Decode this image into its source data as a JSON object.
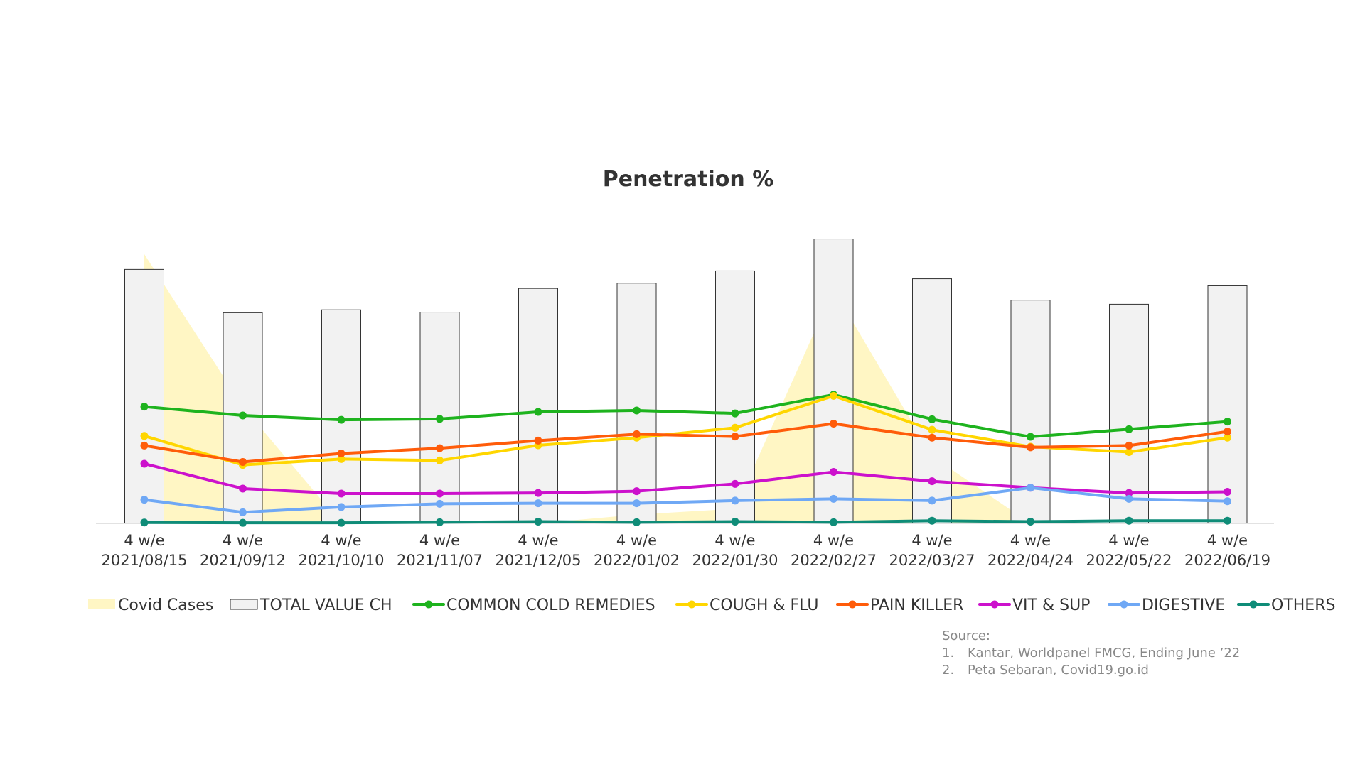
{
  "chart_data": {
    "type": "bar",
    "title": "Penetration %",
    "categories": [
      [
        "4 w/e",
        "2021/08/15"
      ],
      [
        "4 w/e",
        "2021/09/12"
      ],
      [
        "4 w/e",
        "2021/10/10"
      ],
      [
        "4 w/e",
        "2021/11/07"
      ],
      [
        "4 w/e",
        "2021/12/05"
      ],
      [
        "4 w/e",
        "2022/01/02"
      ],
      [
        "4 w/e",
        "2022/01/30"
      ],
      [
        "4 w/e",
        "2022/02/27"
      ],
      [
        "4 w/e",
        "2022/03/27"
      ],
      [
        "4 w/e",
        "2022/04/24"
      ],
      [
        "4 w/e",
        "2022/05/22"
      ],
      [
        "4 w/e",
        "2022/06/19"
      ]
    ],
    "area_series": {
      "name": "Covid Cases",
      "color": "#FFF6C4",
      "values": [
        92,
        40,
        0,
        0,
        0,
        3,
        5,
        80,
        23,
        0,
        0,
        0
      ]
    },
    "bar_series": {
      "name": "TOTAL VALUE CH",
      "fill": "#F2F2F2",
      "stroke": "#333333",
      "values": [
        86.8,
        72.0,
        73.0,
        72.2,
        80.3,
        82.1,
        86.3,
        97.2,
        83.6,
        76.3,
        74.9,
        81.2
      ]
    },
    "line_series": [
      {
        "name": "COMMON COLD REMEDIES",
        "color": "#1EB31E",
        "values": [
          39.9,
          36.9,
          35.4,
          35.7,
          38.1,
          38.6,
          37.6,
          44.0,
          35.6,
          29.6,
          32.2,
          34.8
        ]
      },
      {
        "name": "COUGH & FLU",
        "color": "#FFD600",
        "values": [
          29.9,
          20.0,
          22.0,
          21.5,
          26.7,
          29.3,
          32.7,
          43.6,
          32.0,
          26.2,
          24.4,
          29.3
        ]
      },
      {
        "name": "PAIN KILLER",
        "color": "#FF5C0A",
        "values": [
          26.6,
          21.0,
          23.9,
          25.7,
          28.3,
          30.5,
          29.7,
          34.1,
          29.3,
          26.0,
          26.6,
          31.4
        ]
      },
      {
        "name": "VIT & SUP",
        "color": "#CC11CC",
        "values": [
          20.4,
          11.9,
          10.2,
          10.2,
          10.4,
          11.0,
          13.5,
          17.6,
          14.4,
          12.2,
          10.4,
          10.8
        ]
      },
      {
        "name": "DIGESTIVE",
        "color": "#6FA8F5",
        "values": [
          8.1,
          3.8,
          5.6,
          6.7,
          6.9,
          6.9,
          7.8,
          8.4,
          7.8,
          12.2,
          8.4,
          7.6
        ]
      },
      {
        "name": "OTHERS",
        "color": "#0F8C78",
        "values": [
          0.3,
          0.2,
          0.2,
          0.4,
          0.6,
          0.4,
          0.6,
          0.4,
          0.9,
          0.6,
          0.9,
          0.9
        ]
      }
    ],
    "ylim": [
      0,
      100
    ],
    "grid": false,
    "legend": "bottom"
  },
  "source": {
    "heading": "Source:",
    "items": [
      {
        "num": "1.",
        "text": "Kantar, Worldpanel FMCG, Ending June ’22"
      },
      {
        "num": "2.",
        "text": "Peta Sebaran, Covid19.go.id"
      }
    ]
  }
}
